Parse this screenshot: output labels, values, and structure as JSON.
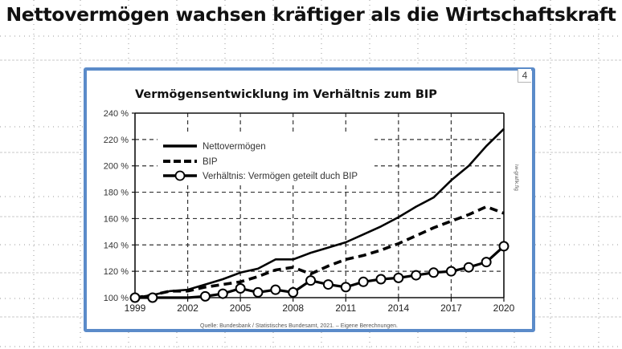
{
  "slide": {
    "title": "Nettovermögen wachsen kräftiger als die Wirtschaftskraft",
    "page_number": "4",
    "frame_color": "#5b8bc9"
  },
  "chart_data": {
    "type": "line",
    "title": "Vermögensentwicklung im Verhältnis zum BIP",
    "xlabel": "",
    "ylabel": "",
    "x": [
      1999,
      2000,
      2001,
      2002,
      2003,
      2004,
      2005,
      2006,
      2007,
      2008,
      2009,
      2010,
      2011,
      2012,
      2013,
      2014,
      2015,
      2016,
      2017,
      2018,
      2019,
      2020
    ],
    "xticks": [
      "1999",
      "2002",
      "2005",
      "2008",
      "2011",
      "2014",
      "2017",
      "2020"
    ],
    "yticks": [
      "100 %",
      "120 %",
      "140 %",
      "160 %",
      "180 %",
      "200 %",
      "220 %",
      "240 %"
    ],
    "ylim": [
      100,
      240
    ],
    "grid": true,
    "legend_position": "top-left",
    "series": [
      {
        "name": "Nettovermögen",
        "style": "solid",
        "values": [
          100,
          102,
          105,
          106,
          110,
          114,
          119,
          122,
          129,
          129,
          134,
          138,
          142,
          148,
          154,
          161,
          169,
          176,
          189,
          200,
          215,
          228
        ]
      },
      {
        "name": "BIP",
        "style": "dashed",
        "values": [
          100,
          102,
          105,
          105,
          108,
          110,
          112,
          116,
          121,
          123,
          118,
          124,
          129,
          132,
          136,
          141,
          147,
          153,
          158,
          163,
          169,
          164
        ]
      },
      {
        "name": "Verhältnis: Vermögen geteilt duch BIP",
        "style": "line-with-circles",
        "values": [
          100,
          100,
          100,
          100,
          101,
          103,
          107,
          104,
          106,
          104,
          113,
          110,
          108,
          112,
          114,
          115,
          117,
          119,
          120,
          123,
          127,
          139
        ],
        "marker_years": [
          1999,
          2000,
          2003,
          2004,
          2005,
          2006,
          2007,
          2008,
          2009,
          2010,
          2011,
          2012,
          2013,
          2014,
          2015,
          2016,
          2017,
          2018,
          2019,
          2020
        ]
      }
    ],
    "source": "Quelle: Bundesbank / Statistisches Bundesamt, 2021. – Eigene Berechnungen.",
    "credit": "iw-grafik.fig"
  }
}
